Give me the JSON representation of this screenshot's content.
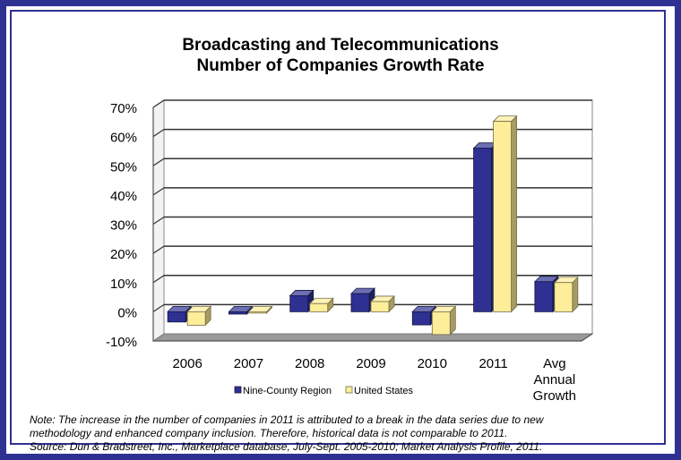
{
  "chart_data": {
    "type": "bar",
    "title": "Broadcasting and Telecommunications",
    "subtitle": "Number of Companies Growth Rate",
    "categories": [
      [
        "2006"
      ],
      [
        "2007"
      ],
      [
        "2008"
      ],
      [
        "2009"
      ],
      [
        "2010"
      ],
      [
        "2011"
      ],
      [
        "Avg",
        "Annual",
        "Growth"
      ]
    ],
    "series": [
      {
        "name": "Nine-County Region",
        "color": "#2e3192",
        "values": [
          -3.5,
          -0.8,
          5.5,
          6.2,
          -4.5,
          56,
          10.3
        ]
      },
      {
        "name": "United States",
        "color": "#ffee99",
        "values": [
          -4.6,
          -0.3,
          2.8,
          3.5,
          -7.8,
          65.2,
          10.0
        ]
      }
    ],
    "ylim": [
      -10,
      70
    ],
    "yticks": [
      "-10%",
      "0%",
      "10%",
      "20%",
      "30%",
      "40%",
      "50%",
      "60%",
      "70%"
    ],
    "grid": true,
    "legend": "bottom"
  },
  "notes": [
    "Note: The increase in the number of companies in 2011 is attributed to a break in the data series due to new",
    "methodology and enhanced company inclusion. Therefore, historical data is not comparable to 2011.",
    "Source: Dun & Bradstreet, Inc., Marketplace database, July-Sept. 2005-2010; Market Analysis Profile, 2011."
  ]
}
